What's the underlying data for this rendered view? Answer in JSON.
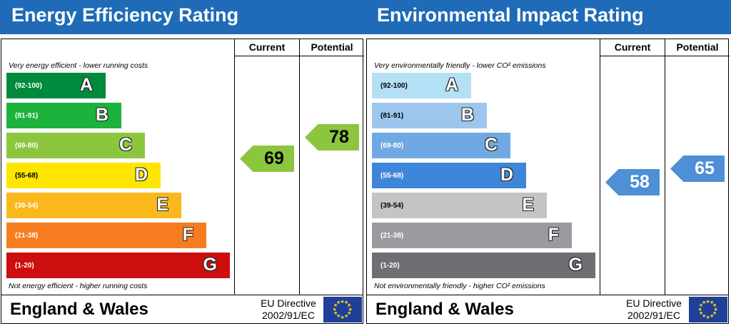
{
  "chart_data": [
    {
      "type": "bar",
      "title": "Energy Efficiency Rating",
      "columns": [
        "Current",
        "Potential"
      ],
      "top_note": "Very energy efficient - lower running costs",
      "bottom_note": "Not energy efficient - higher running costs",
      "bands": [
        {
          "range": "(92-100)",
          "letter": "A",
          "color": "#008a3e"
        },
        {
          "range": "(81-91)",
          "letter": "B",
          "color": "#1cb33c"
        },
        {
          "range": "(69-80)",
          "letter": "C",
          "color": "#8cc63f"
        },
        {
          "range": "(55-68)",
          "letter": "D",
          "color": "#ffe600"
        },
        {
          "range": "(39-54)",
          "letter": "E",
          "color": "#fbb81c"
        },
        {
          "range": "(21-38)",
          "letter": "F",
          "color": "#f57d1f"
        },
        {
          "range": "(1-20)",
          "letter": "G",
          "color": "#cc0e0e"
        }
      ],
      "current": 69,
      "potential": 78,
      "current_color": "#8cc63f",
      "potential_color": "#8cc63f",
      "footer": "England & Wales",
      "directive": "EU Directive",
      "directive_code": "2002/91/EC"
    },
    {
      "type": "bar",
      "title": "Environmental Impact Rating",
      "columns": [
        "Current",
        "Potential"
      ],
      "top_note": "Very environmentally friendly - lower CO² emissions",
      "bottom_note": "Not environmentally friendly - higher CO² emissions",
      "bands": [
        {
          "range": "(92-100)",
          "letter": "A",
          "color": "#b4e0f5"
        },
        {
          "range": "(81-91)",
          "letter": "B",
          "color": "#9dc6ec"
        },
        {
          "range": "(69-80)",
          "letter": "C",
          "color": "#6fa9e4"
        },
        {
          "range": "(55-68)",
          "letter": "D",
          "color": "#3e86d9"
        },
        {
          "range": "(39-54)",
          "letter": "E",
          "color": "#c4c4c6"
        },
        {
          "range": "(21-38)",
          "letter": "F",
          "color": "#9b9a9f"
        },
        {
          "range": "(1-20)",
          "letter": "G",
          "color": "#6f6f73"
        }
      ],
      "current": 58,
      "potential": 65,
      "current_color": "#4e8fd6",
      "potential_color": "#4e8fd6",
      "footer": "England & Wales",
      "directive": "EU Directive",
      "directive_code": "2002/91/EC"
    }
  ]
}
